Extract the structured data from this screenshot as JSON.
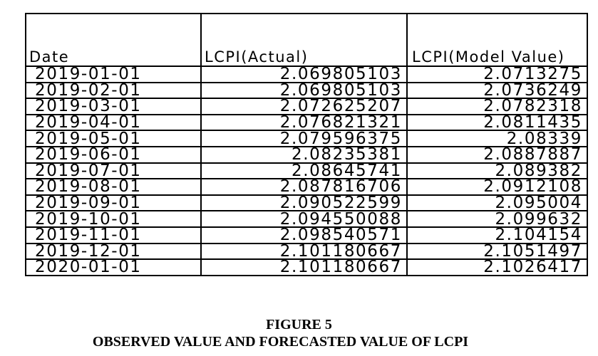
{
  "table": {
    "headers": [
      "Date",
      "LCPI(Actual)",
      "LCPI(Model Value)"
    ],
    "rows": [
      [
        "2019-01-01",
        "2.069805103",
        "2.0713275"
      ],
      [
        "2019-02-01",
        "2.069805103",
        "2.0736249"
      ],
      [
        "2019-03-01",
        "2.072625207",
        "2.0782318"
      ],
      [
        "2019-04-01",
        "2.076821321",
        "2.0811435"
      ],
      [
        "2019-05-01",
        "2.079596375",
        "2.08339"
      ],
      [
        "2019-06-01",
        "2.08235381",
        "2.0887887"
      ],
      [
        "2019-07-01",
        "2.08645741",
        "2.089382"
      ],
      [
        "2019-08-01",
        "2.087816706",
        "2.0912108"
      ],
      [
        "2019-09-01",
        "2.090522599",
        "2.095004"
      ],
      [
        "2019-10-01",
        "2.094550088",
        "2.099632"
      ],
      [
        "2019-11-01",
        "2.098540571",
        "2.104154"
      ],
      [
        "2019-12-01",
        "2.101180667",
        "2.1051497"
      ],
      [
        "2020-01-01",
        "2.101180667",
        "2.1026417"
      ]
    ]
  },
  "caption": {
    "figure_label": "FIGURE 5",
    "title": "OBSERVED VALUE AND FORECASTED VALUE OF LCPI"
  }
}
